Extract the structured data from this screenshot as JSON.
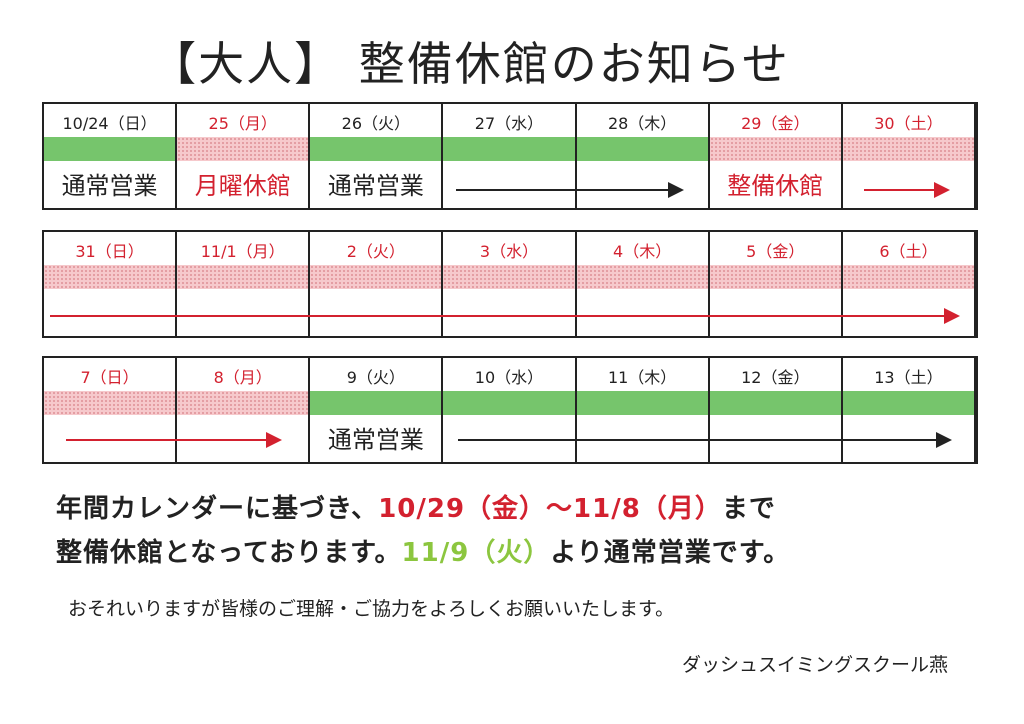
{
  "title": "【大人】 整備休館のお知らせ",
  "weeks": [
    {
      "days": [
        {
          "label": "10/24（日）",
          "red": false,
          "strip": "green"
        },
        {
          "label": "25（月）",
          "red": true,
          "strip": "pink"
        },
        {
          "label": "26（火）",
          "red": false,
          "strip": "green"
        },
        {
          "label": "27（水）",
          "red": false,
          "strip": "green"
        },
        {
          "label": "28（木）",
          "red": false,
          "strip": "green"
        },
        {
          "label": "29（金）",
          "red": true,
          "strip": "pink"
        },
        {
          "label": "30（土）",
          "red": true,
          "strip": "pink"
        }
      ],
      "texts": [
        "通常営業",
        "月曜休館",
        "通常営業",
        "整備休館"
      ]
    },
    {
      "days": [
        {
          "label": "31（日）",
          "red": true,
          "strip": "pink"
        },
        {
          "label": "11/1（月）",
          "red": true,
          "strip": "pink"
        },
        {
          "label": "2（火）",
          "red": true,
          "strip": "pink"
        },
        {
          "label": "3（水）",
          "red": true,
          "strip": "pink"
        },
        {
          "label": "4（木）",
          "red": true,
          "strip": "pink"
        },
        {
          "label": "5（金）",
          "red": true,
          "strip": "pink"
        },
        {
          "label": "6（土）",
          "red": true,
          "strip": "pink"
        }
      ]
    },
    {
      "days": [
        {
          "label": "7（日）",
          "red": true,
          "strip": "pink"
        },
        {
          "label": "8（月）",
          "red": true,
          "strip": "pink"
        },
        {
          "label": "9（火）",
          "red": false,
          "strip": "green"
        },
        {
          "label": "10（水）",
          "red": false,
          "strip": "green"
        },
        {
          "label": "11（木）",
          "red": false,
          "strip": "green"
        },
        {
          "label": "12（金）",
          "red": false,
          "strip": "green"
        },
        {
          "label": "13（土）",
          "red": false,
          "strip": "green"
        }
      ],
      "texts": [
        "通常営業"
      ]
    }
  ],
  "message": {
    "line1_a": "年間カレンダーに基づき、",
    "line1_b": "10/29（金）～11/8（月）",
    "line1_c": "まで",
    "line2_a": "整備休館となっております。",
    "line2_b": "11/9（火）",
    "line2_c": "より通常営業です。"
  },
  "note": "おそれいりますが皆様のご理解・ご協力をよろしくお願いいたします。",
  "signature": "ダッシュスイミングスクール燕",
  "colors": {
    "red": "#d3212f",
    "green": "#76c56c",
    "pink": "#f6c9cc",
    "text_green": "#8cc63f"
  }
}
